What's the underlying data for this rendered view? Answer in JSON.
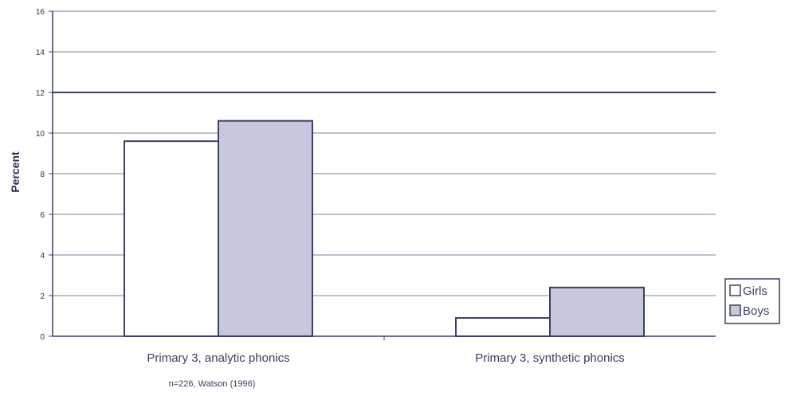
{
  "chart_data": {
    "type": "bar",
    "categories": [
      "Primary 3, analytic phonics",
      "Primary 3, synthetic phonics"
    ],
    "series": [
      {
        "name": "Girls",
        "values": [
          9.6,
          0.9
        ],
        "color": "#ffffff"
      },
      {
        "name": "Boys",
        "values": [
          10.6,
          2.4
        ],
        "color": "#c8c8dc"
      }
    ],
    "ylabel": "Percent",
    "ylim": [
      0,
      16
    ],
    "yticks": [
      "0",
      "2",
      "4",
      "6",
      "8",
      "10",
      "12",
      "14",
      "16"
    ],
    "reference_line": 12,
    "note": "n=226, Watson (1996)",
    "grid": true,
    "legend_position": "right"
  }
}
